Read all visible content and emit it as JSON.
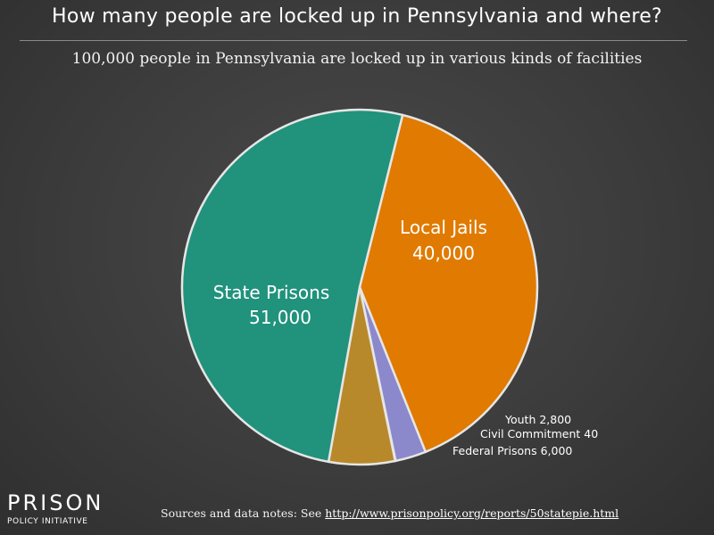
{
  "header": {
    "title": "How many people are locked up in Pennsylvania and where?",
    "subtitle": "100,000 people in Pennsylvania are locked up in various kinds of facilities"
  },
  "chart_data": {
    "type": "pie",
    "title": "How many people are locked up in Pennsylvania and where?",
    "slices": [
      {
        "name": "Local Jails",
        "value": 40000,
        "label": "40,000",
        "color": "#e07a00"
      },
      {
        "name": "Youth",
        "value": 2800,
        "label": "2,800",
        "color": "#8c88cc"
      },
      {
        "name": "Civil Commitment",
        "value": 40,
        "label": "40",
        "color": "#c41e3a"
      },
      {
        "name": "Federal Prisons",
        "value": 6000,
        "label": "6,000",
        "color": "#b8892a"
      },
      {
        "name": "State Prisons",
        "value": 51000,
        "label": "51,000",
        "color": "#21927c"
      }
    ]
  },
  "labels": {
    "local_jails_name": "Local Jails",
    "local_jails_value": "40,000",
    "state_prisons_name": "State Prisons",
    "state_prisons_value": "51,000",
    "youth": "Youth 2,800",
    "civil_commitment": "Civil Commitment 40",
    "federal_prisons": "Federal Prisons 6,000"
  },
  "footer": {
    "logo_line1": "PRISON",
    "logo_line2": "POLICY INITIATIVE",
    "sources_prefix": "Sources and data notes: See ",
    "sources_link": "http://www.prisonpolicy.org/reports/50statepie.html"
  }
}
